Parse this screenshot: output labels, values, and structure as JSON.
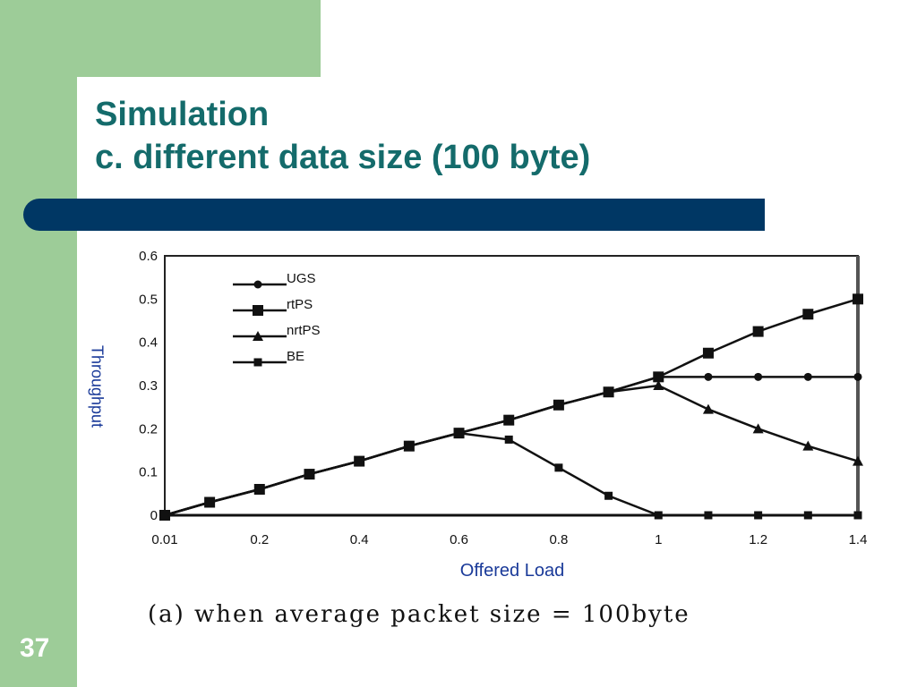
{
  "slide": {
    "title_line1": "Simulation",
    "title_line2": "c. different data size (100 byte)",
    "number": "37",
    "caption": "(a) when average packet size = 100byte",
    "colors": {
      "accent_green": "#9dcc98",
      "title_teal": "#146b6b",
      "bar_navy": "#003764",
      "label_blue": "#1a3a99"
    }
  },
  "chart_data": {
    "type": "line",
    "xlabel": "Offered Load",
    "ylabel": "Throughput",
    "xlim": [
      0.01,
      1.4
    ],
    "ylim": [
      0,
      0.6
    ],
    "x_ticks": [
      "0.01",
      "0.2",
      "0.4",
      "0.6",
      "0.8",
      "1",
      "1.2",
      "1.4"
    ],
    "y_ticks": [
      "0",
      "0.1",
      "0.2",
      "0.3",
      "0.4",
      "0.5",
      "0.6"
    ],
    "legend_position": "top-left",
    "grid": false,
    "x": [
      0.01,
      0.1,
      0.2,
      0.3,
      0.4,
      0.5,
      0.6,
      0.7,
      0.8,
      0.9,
      1.0,
      1.1,
      1.2,
      1.3,
      1.4
    ],
    "series": [
      {
        "name": "UGS",
        "marker": "circle",
        "values": [
          0,
          0.03,
          0.06,
          0.095,
          0.125,
          0.16,
          0.19,
          0.22,
          0.255,
          0.285,
          0.32,
          0.32,
          0.32,
          0.32,
          0.32
        ]
      },
      {
        "name": "rtPS",
        "marker": "square",
        "values": [
          0,
          0.03,
          0.06,
          0.095,
          0.125,
          0.16,
          0.19,
          0.22,
          0.255,
          0.285,
          0.32,
          0.375,
          0.425,
          0.465,
          0.5
        ]
      },
      {
        "name": "nrtPS",
        "marker": "triangle",
        "values": [
          0,
          0.03,
          0.06,
          0.095,
          0.125,
          0.16,
          0.19,
          0.22,
          0.255,
          0.285,
          0.3,
          0.245,
          0.2,
          0.16,
          0.125
        ]
      },
      {
        "name": "BE",
        "marker": "square-small",
        "values": [
          0,
          0.03,
          0.06,
          0.095,
          0.125,
          0.16,
          0.19,
          0.175,
          0.11,
          0.045,
          0,
          0,
          0,
          0,
          0
        ]
      }
    ]
  }
}
